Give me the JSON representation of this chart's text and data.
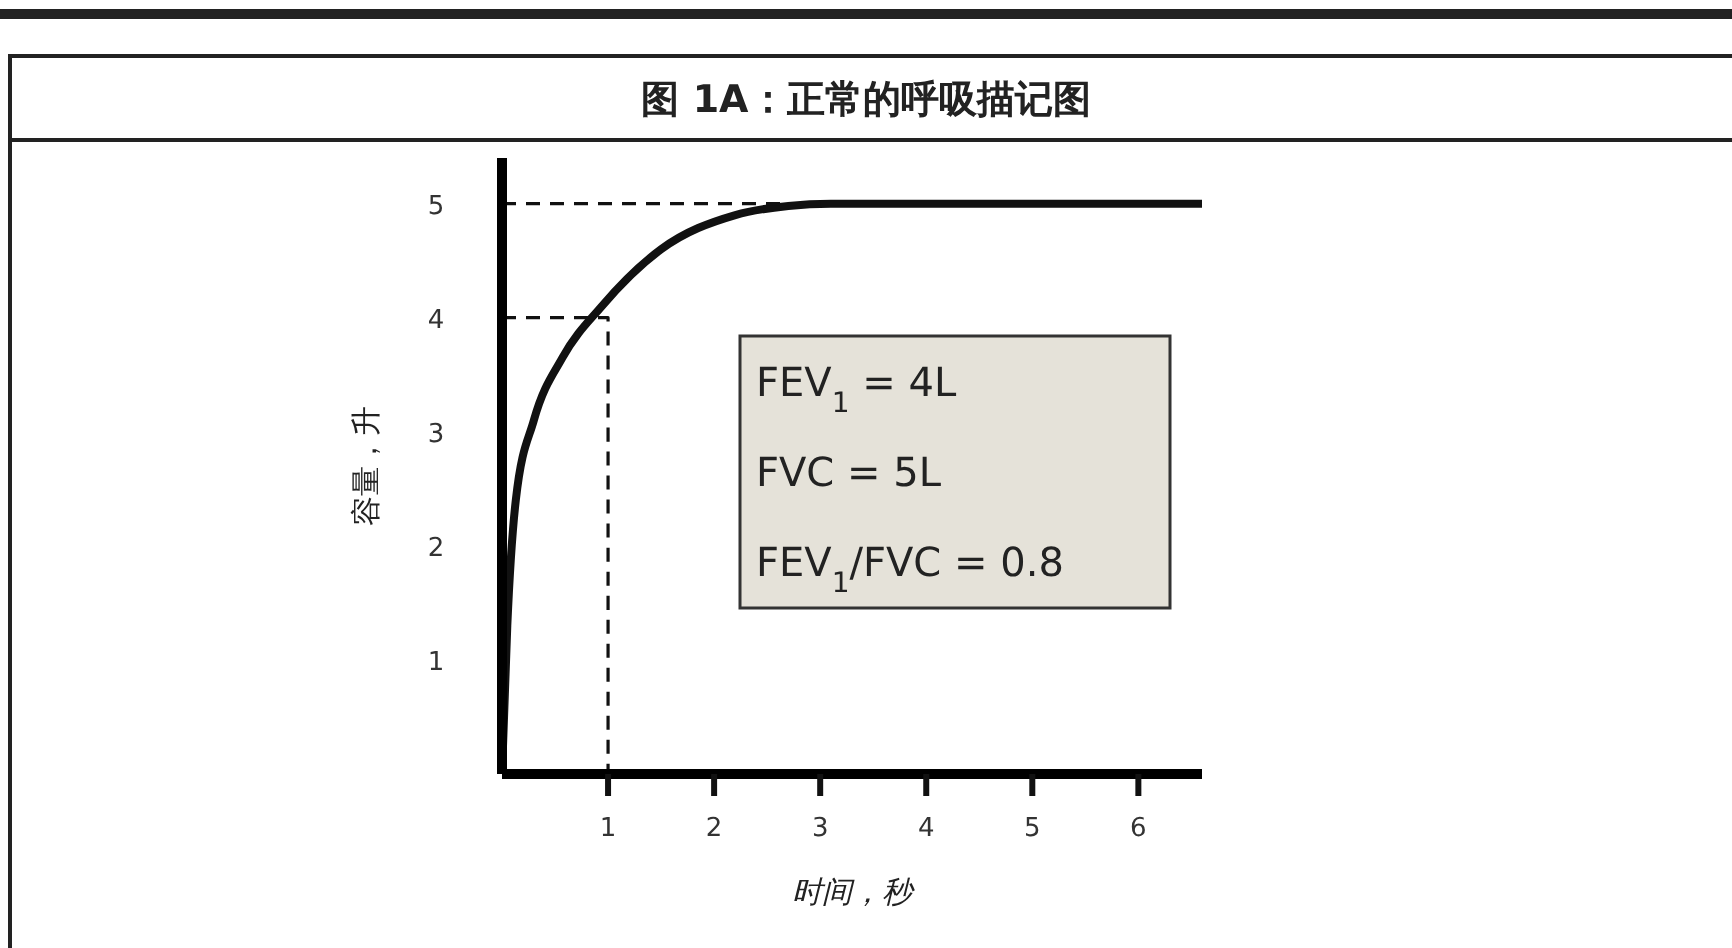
{
  "chart_data": {
    "type": "line",
    "title": "图 1A：正常的呼吸描记图",
    "xlabel": "时间，秒",
    "ylabel": "容量，升",
    "xlim": [
      0,
      6.6
    ],
    "ylim": [
      0,
      5.4
    ],
    "xticks": [
      1,
      2,
      3,
      4,
      5,
      6
    ],
    "yticks": [
      1,
      2,
      3,
      4,
      5
    ],
    "grid": false,
    "marker": "none",
    "series": [
      {
        "color": "#111111",
        "line_style": "solid",
        "x": [
          0,
          0.05,
          0.13,
          0.3,
          0.57,
          0.94,
          1.5,
          2.2,
          2.7,
          3.1,
          4,
          5,
          6,
          6.6
        ],
        "values": [
          0,
          1.3,
          2.4,
          3.1,
          3.65,
          4.1,
          4.6,
          4.9,
          4.98,
          5,
          5,
          5,
          5,
          5
        ]
      },
      {
        "color": "#111111",
        "line_style": "dashed",
        "x": [
          0,
          1,
          1
        ],
        "values": [
          4,
          4,
          0
        ]
      },
      {
        "color": "#111111",
        "line_style": "dashed",
        "x": [
          0,
          3
        ],
        "values": [
          5,
          5
        ]
      }
    ],
    "annotations": [
      "FEV$_{1}$ = 4L",
      "FVC  = 5L",
      "FEV$_{1}$/FVC = 0.8"
    ]
  }
}
